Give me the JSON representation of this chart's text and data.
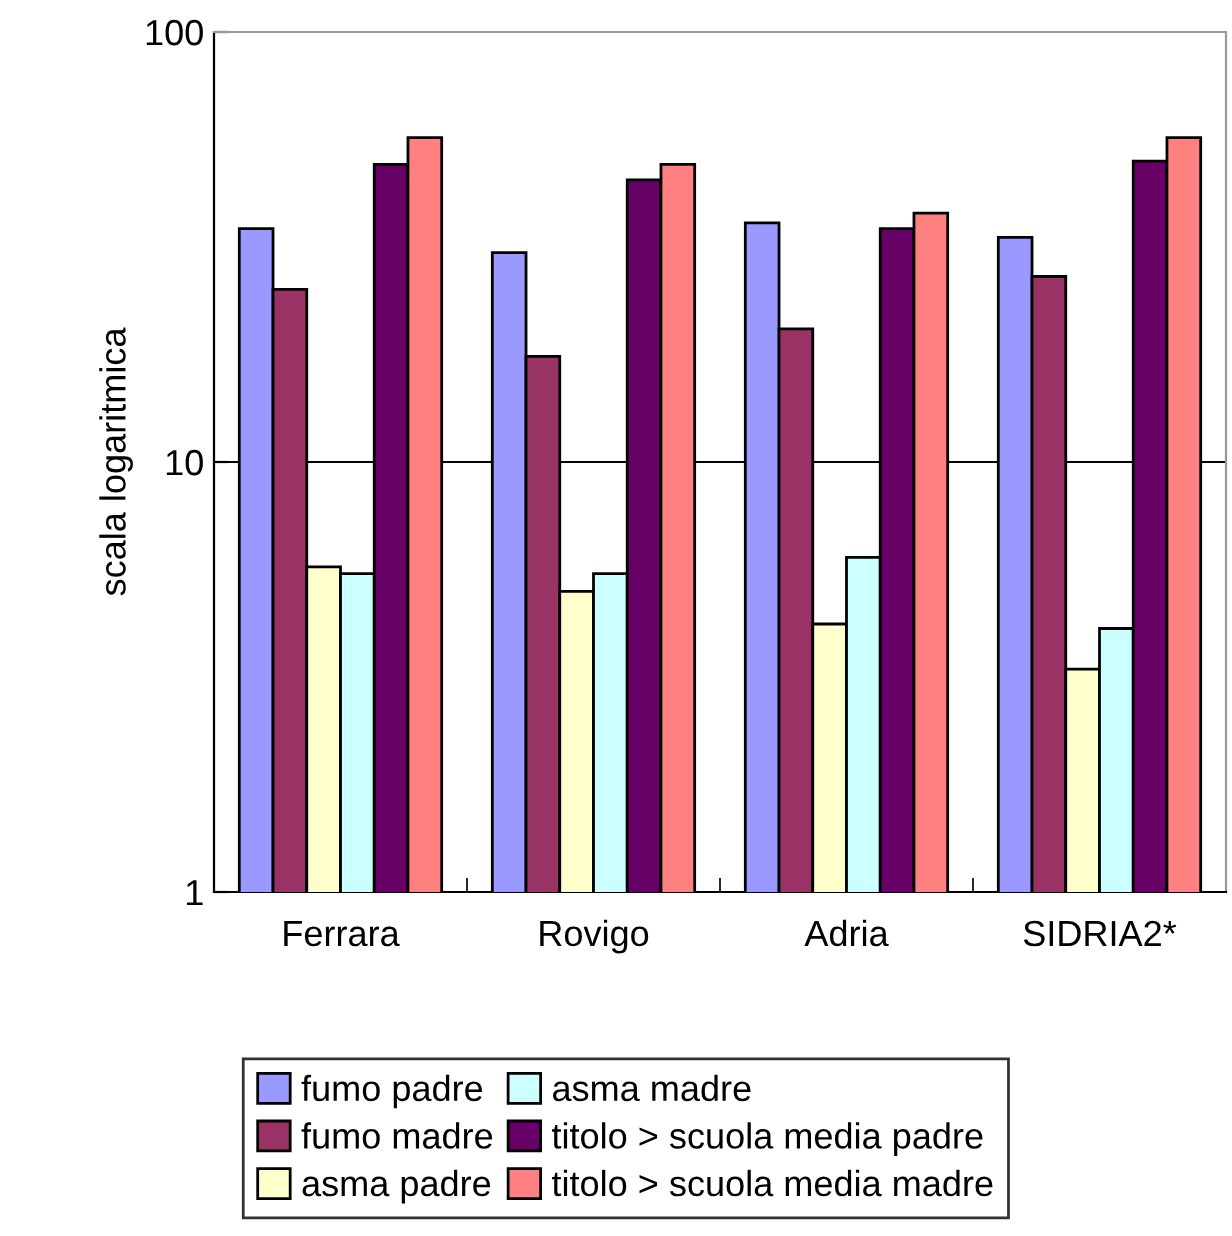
{
  "chart_data": {
    "type": "bar",
    "ylabel": "scala logaritmica",
    "log": true,
    "ylim": [
      1,
      100
    ],
    "yticks": [
      1,
      10,
      100
    ],
    "grid": "y",
    "legend": "bottom",
    "categories": [
      "Ferrara",
      "Rovigo",
      "Adria",
      "SIDRIA2*"
    ],
    "series": [
      {
        "name": "fumo padre",
        "color": "#9999ff",
        "values": [
          34.9,
          30.7,
          36.0,
          33.3
        ]
      },
      {
        "name": "fumo madre",
        "color": "#993366",
        "values": [
          25.2,
          17.6,
          20.4,
          27.0
        ]
      },
      {
        "name": "asma padre",
        "color": "#ffffcc",
        "values": [
          5.7,
          5.0,
          4.2,
          3.3
        ]
      },
      {
        "name": "asma madre",
        "color": "#ccffff",
        "values": [
          5.5,
          5.5,
          6.0,
          4.1
        ]
      },
      {
        "name": "titolo > scuola media padre",
        "color": "#660066",
        "values": [
          49.2,
          45.3,
          34.9,
          50.1
        ]
      },
      {
        "name": "titolo > scuola media madre",
        "color": "#ff8080",
        "values": [
          56.8,
          49.2,
          37.9,
          56.8
        ]
      }
    ]
  }
}
